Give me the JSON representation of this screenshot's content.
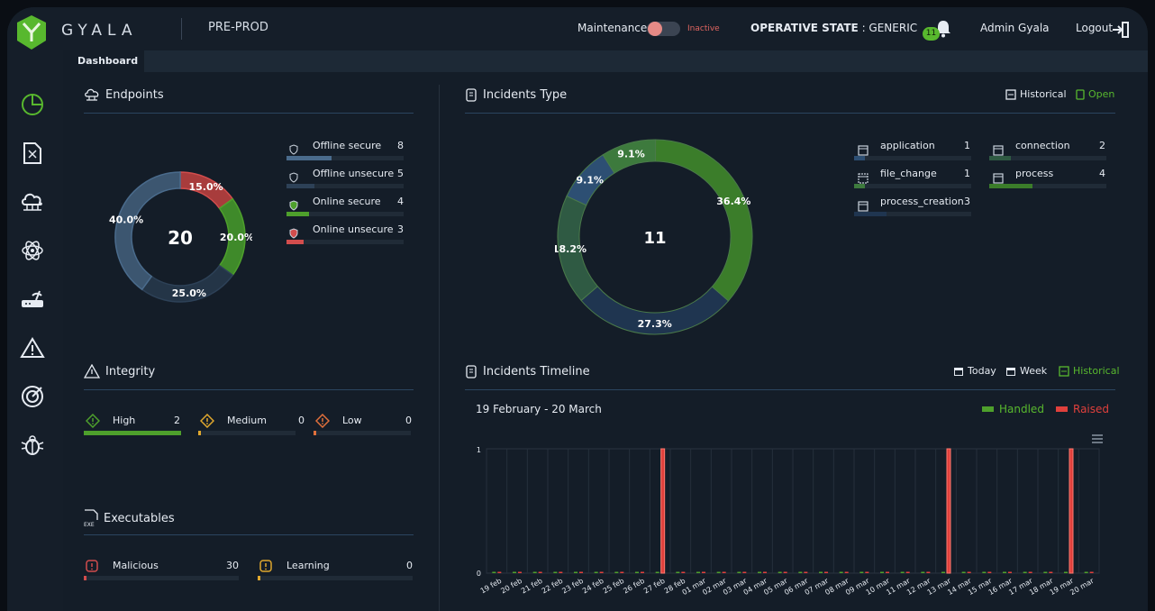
{
  "header": {
    "brand": "GYALA",
    "environment": "PRE-PROD",
    "maintenance_label": "Maintenance",
    "maintenance_state": "Inactive",
    "operative_state_label": "OPERATIVE STATE",
    "operative_state_value": "GENERIC",
    "notifications_count": "11",
    "user_name": "Admin Gyala",
    "logout_label": "Logout"
  },
  "tabs": [
    {
      "label": "Dashboard"
    }
  ],
  "sidebar": {
    "items": [
      {
        "icon": "pie-chart-icon",
        "active": true
      },
      {
        "icon": "document-icon"
      },
      {
        "icon": "cloud-network-icon"
      },
      {
        "icon": "atom-icon"
      },
      {
        "icon": "router-icon"
      },
      {
        "icon": "warning-icon"
      },
      {
        "icon": "target-icon"
      },
      {
        "icon": "bug-icon"
      }
    ]
  },
  "endpoints": {
    "title": "Endpoints",
    "total": "20",
    "items": [
      {
        "label": "Offline secure",
        "count": "8",
        "color": "#4a6b8c",
        "fraction": 0.4,
        "pct": "40.0%"
      },
      {
        "label": "Offline unsecure",
        "count": "5",
        "color": "#2d4157",
        "fraction": 0.25,
        "pct": "25.0%"
      },
      {
        "label": "Online secure",
        "count": "4",
        "color": "#4ea02c",
        "fraction": 0.2,
        "pct": "20.0%"
      },
      {
        "label": "Online unsecure",
        "count": "3",
        "color": "#d24d4d",
        "fraction": 0.15,
        "pct": "15.0%"
      }
    ]
  },
  "integrity": {
    "title": "Integrity",
    "items": [
      {
        "label": "High",
        "count": "2",
        "color": "#4ea02c",
        "fraction": 1.0
      },
      {
        "label": "Medium",
        "count": "0",
        "color": "#e0a82e",
        "fraction": 0.0
      },
      {
        "label": "Low",
        "count": "0",
        "color": "#e0703c",
        "fraction": 0.0
      }
    ]
  },
  "executables": {
    "title": "Executables",
    "items": [
      {
        "label": "Malicious",
        "count": "30",
        "color": "#d24d4d"
      },
      {
        "label": "Learning",
        "count": "0",
        "color": "#e0a82e"
      }
    ]
  },
  "incidents_type": {
    "title": "Incidents Type",
    "historical_label": "Historical",
    "open_label": "Open",
    "total": "11",
    "items": [
      {
        "label": "application",
        "count": "1",
        "color": "#2d4f73",
        "fraction": 0.091
      },
      {
        "label": "connection",
        "count": "2",
        "color": "#2f5a43",
        "fraction": 0.182
      },
      {
        "label": "file_change",
        "count": "1",
        "color": "#3d7a3d",
        "fraction": 0.091
      },
      {
        "label": "process",
        "count": "4",
        "color": "#3b7d2a",
        "fraction": 0.364
      },
      {
        "label": "process_creation",
        "count": "3",
        "color": "#1f3550",
        "fraction": 0.273
      }
    ]
  },
  "incidents_timeline": {
    "title": "Incidents Timeline",
    "today_label": "Today",
    "week_label": "Week",
    "historical_label": "Historical",
    "range_label": "19 February - 20 March",
    "legend": [
      {
        "label": "Handled",
        "color": "#4ea02c"
      },
      {
        "label": "Raised",
        "color": "#e0403c"
      }
    ]
  },
  "chart_data": [
    {
      "type": "pie",
      "title": "Endpoints",
      "categories": [
        "Offline secure",
        "Offline unsecure",
        "Online secure",
        "Online unsecure"
      ],
      "values": [
        8,
        5,
        4,
        3
      ],
      "labels": [
        "40.0%",
        "25.0%",
        "20.0%",
        "15.0%"
      ]
    },
    {
      "type": "pie",
      "title": "Incidents Type",
      "categories": [
        "process",
        "process_creation",
        "connection",
        "application",
        "file_change"
      ],
      "values": [
        4,
        3,
        2,
        1,
        1
      ],
      "labels": [
        "36.4%",
        "27.3%",
        "18.2%",
        "9.1%",
        "9.1%"
      ]
    },
    {
      "type": "bar",
      "title": "Incidents Timeline",
      "categories": [
        "19 feb",
        "20 feb",
        "21 feb",
        "22 feb",
        "23 feb",
        "24 feb",
        "25 feb",
        "26 feb",
        "27 feb",
        "28 feb",
        "01 mar",
        "02 mar",
        "03 mar",
        "04 mar",
        "05 mar",
        "06 mar",
        "07 mar",
        "08 mar",
        "09 mar",
        "10 mar",
        "11 mar",
        "12 mar",
        "13 mar",
        "14 mar",
        "15 mar",
        "16 mar",
        "17 mar",
        "18 mar",
        "19 mar",
        "20 mar"
      ],
      "series": [
        {
          "name": "Handled",
          "values": [
            0,
            0,
            0,
            0,
            0,
            0,
            0,
            0,
            0,
            0,
            0,
            0,
            0,
            0,
            0,
            0,
            0,
            0,
            0,
            0,
            0,
            0,
            0,
            0,
            0,
            0,
            0,
            0,
            0,
            0
          ]
        },
        {
          "name": "Raised",
          "values": [
            0,
            0,
            0,
            0,
            0,
            0,
            0,
            0,
            1,
            0,
            0,
            0,
            0,
            0,
            0,
            0,
            0,
            0,
            0,
            0,
            0,
            0,
            1,
            0,
            0,
            0,
            0,
            0,
            1,
            0
          ]
        }
      ],
      "ylim": [
        0,
        1
      ],
      "yticks": [
        "0",
        "1"
      ]
    }
  ]
}
